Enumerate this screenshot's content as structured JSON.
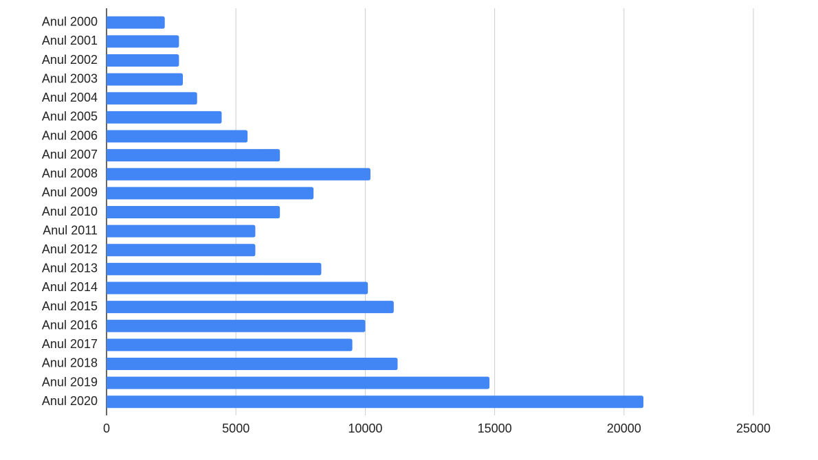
{
  "chart_data": {
    "type": "bar",
    "orientation": "horizontal",
    "categories": [
      "Anul 2000",
      "Anul 2001",
      "Anul 2002",
      "Anul 2003",
      "Anul 2004",
      "Anul 2005",
      "Anul 2006",
      "Anul 2007",
      "Anul 2008",
      "Anul 2009",
      "Anul 2010",
      "Anul 2011",
      "Anul 2012",
      "Anul 2013",
      "Anul 2014",
      "Anul 2015",
      "Anul 2016",
      "Anul 2017",
      "Anul 2018",
      "Anul 2019",
      "Anul 2020"
    ],
    "values": [
      2250,
      2800,
      2800,
      2950,
      3500,
      4450,
      5450,
      6700,
      10200,
      8000,
      6700,
      5750,
      5750,
      8300,
      10100,
      11100,
      10000,
      9500,
      11250,
      14800,
      20750
    ],
    "color": "#4285f4",
    "xlim": [
      0,
      25000
    ],
    "xticks": [
      0,
      5000,
      10000,
      15000,
      20000,
      25000
    ],
    "grid": true
  }
}
